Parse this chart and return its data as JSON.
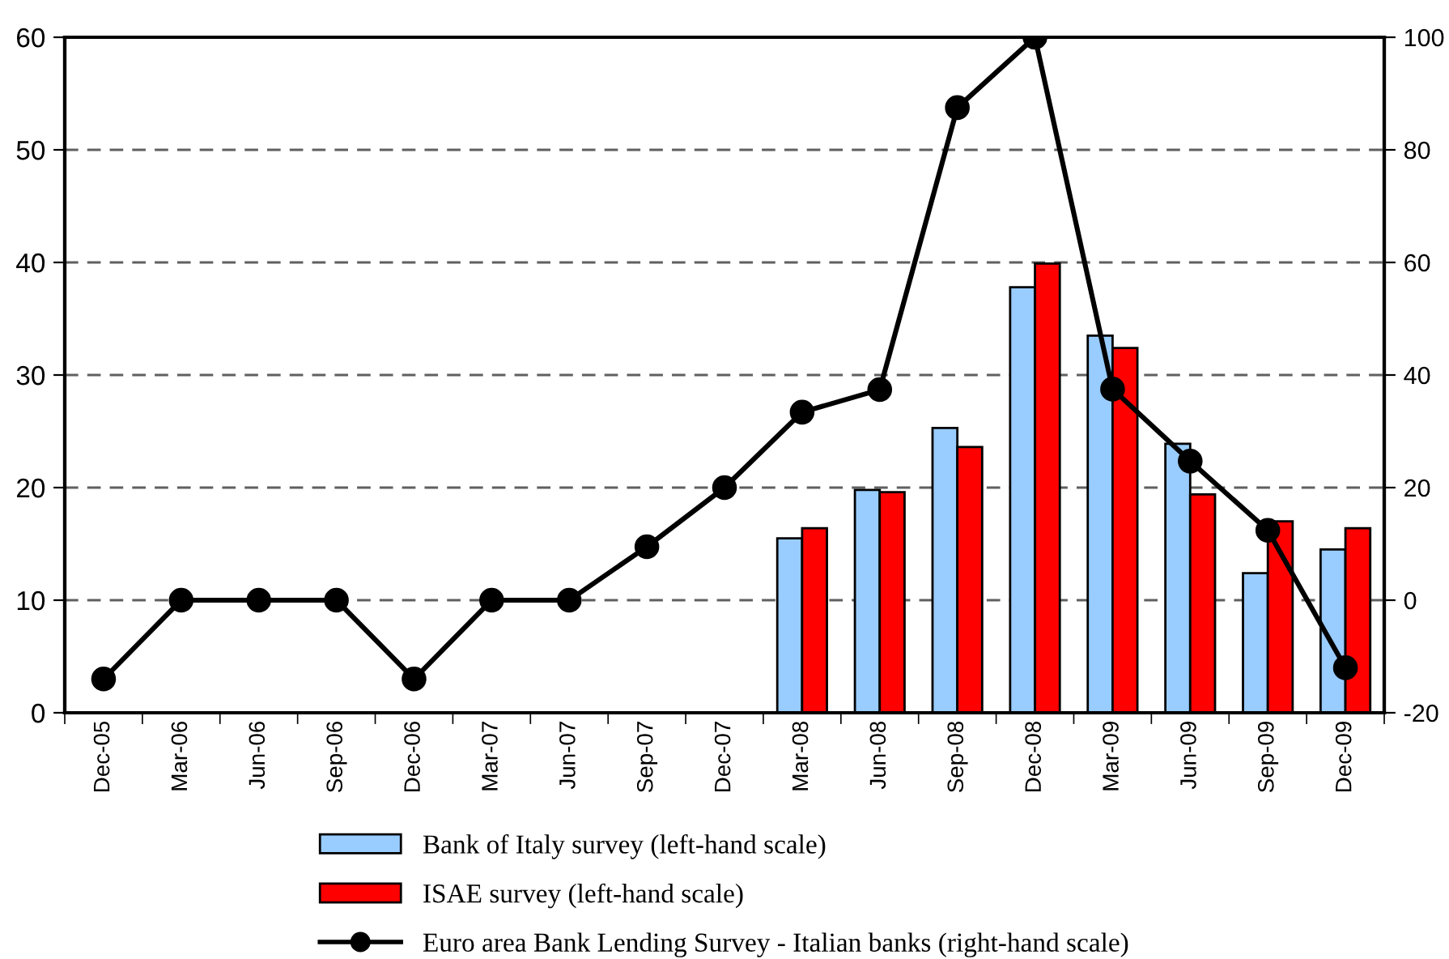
{
  "chart_data": {
    "type": "bar",
    "categories": [
      "Dec-05",
      "Mar-06",
      "Jun-06",
      "Sep-06",
      "Dec-06",
      "Mar-07",
      "Jun-07",
      "Sep-07",
      "Dec-07",
      "Mar-08",
      "Jun-08",
      "Sep-08",
      "Dec-08",
      "Mar-09",
      "Jun-09",
      "Sep-09",
      "Dec-09"
    ],
    "series": [
      {
        "name": "Bank of Italy survey (left-hand scale)",
        "color": "#99ccff",
        "values": [
          null,
          null,
          null,
          null,
          null,
          null,
          null,
          null,
          null,
          15.5,
          19.8,
          25.3,
          37.8,
          33.5,
          23.9,
          12.4,
          14.5
        ]
      },
      {
        "name": "ISAE survey (left-hand scale)",
        "color": "#ff0000",
        "values": [
          null,
          null,
          null,
          null,
          null,
          null,
          null,
          null,
          null,
          16.4,
          19.6,
          23.6,
          39.9,
          32.4,
          19.4,
          17.0,
          16.4
        ]
      },
      {
        "name": "Euro area Bank Lending Survey - Italian banks (right-hand scale)",
        "type": "line",
        "axis": "y2",
        "color": "#000000",
        "marker": "circle",
        "line_style": "solid",
        "values": [
          -14,
          0,
          0,
          0,
          -14,
          0,
          0,
          9.5,
          20,
          33.4,
          37.4,
          87.5,
          100,
          37.5,
          24.7,
          12.4,
          -12
        ]
      }
    ],
    "ylim": [
      0,
      60
    ],
    "yticks": [
      0,
      10,
      20,
      30,
      40,
      50,
      60
    ],
    "y2lim": [
      -20,
      100
    ],
    "y2ticks": [
      -20,
      0,
      20,
      40,
      60,
      80,
      100
    ],
    "grid": "y",
    "legend": "bottom"
  }
}
